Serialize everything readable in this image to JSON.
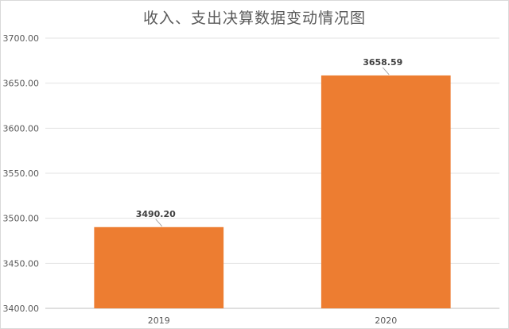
{
  "chart_data": {
    "type": "bar",
    "title": "收入、支出决算数据变动情况图",
    "xlabel": "",
    "ylabel": "",
    "categories": [
      "2019",
      "2020"
    ],
    "values": [
      3490.2,
      3658.59
    ],
    "data_labels": [
      "3490.20",
      "3658.59"
    ],
    "ylim": [
      3400,
      3700
    ],
    "ytick_labels": [
      "3400.00",
      "3450.00",
      "3500.00",
      "3550.00",
      "3600.00",
      "3650.00",
      "3700.00"
    ],
    "grid": true,
    "legend": "none",
    "bar_color": "#ED7D31"
  }
}
